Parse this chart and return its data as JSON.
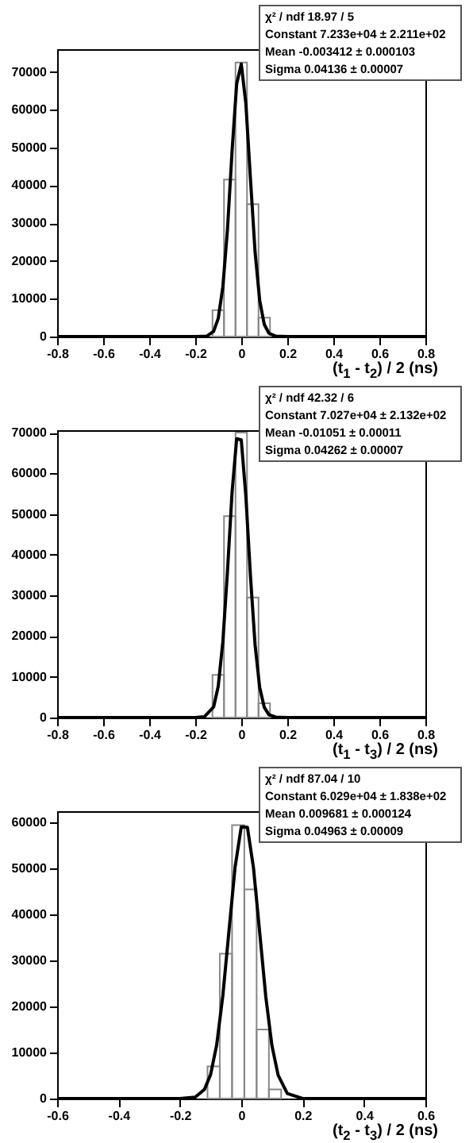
{
  "chart_data": [
    {
      "type": "histogram",
      "xlabel": "(t$_{1}$ - t$_{2}$) / 2 (ns)",
      "color": "#888888",
      "bins": [
        -0.125,
        -0.075,
        -0.025,
        0.025,
        0.075,
        0.125
      ],
      "values": [
        7000,
        41500,
        72500,
        35000,
        5000
      ],
      "series": [
        {
          "type": "line",
          "color": "#000000",
          "x": [
            -0.8,
            -0.2,
            -0.15,
            -0.12,
            -0.1,
            -0.08,
            -0.06,
            -0.04,
            -0.02,
            0,
            0.02,
            0.04,
            0.06,
            0.08,
            0.1,
            0.12,
            0.15,
            0.2,
            0.8
          ],
          "values": [
            0,
            0,
            100,
            1400,
            4800,
            13100,
            28200,
            49000,
            66800,
            72100,
            61600,
            41700,
            22400,
            9600,
            3200,
            900,
            100,
            0,
            0
          ]
        }
      ],
      "xlim": [
        -0.8,
        0.8
      ],
      "xticks": [
        -0.8,
        -0.6,
        -0.4,
        -0.2,
        0,
        0.2,
        0.4,
        0.6,
        0.8
      ],
      "ylim": [
        0,
        76000
      ],
      "yticks": [
        0,
        10000,
        20000,
        30000,
        40000,
        50000,
        60000,
        70000
      ],
      "annotations": [
        "χ² / ndf  18.97 / 5",
        "Constant  7.233e+04 ± 2.211e+02",
        "Mean  -0.003412 ± 0.000103",
        "Sigma  0.04136 ± 0.00007"
      ]
    },
    {
      "type": "histogram",
      "xlabel": "(t$_{1}$ - t$_{3}$) / 2 (ns)",
      "color": "#888888",
      "bins": [
        -0.125,
        -0.075,
        -0.025,
        0.025,
        0.075,
        0.125
      ],
      "values": [
        10500,
        49500,
        70000,
        29500,
        3500
      ],
      "series": [
        {
          "type": "line",
          "color": "#000000",
          "x": [
            -0.8,
            -0.2,
            -0.16,
            -0.12,
            -0.1,
            -0.08,
            -0.06,
            -0.04,
            -0.02,
            0,
            0.02,
            0.04,
            0.06,
            0.08,
            0.1,
            0.12,
            0.15,
            0.2,
            0.8
          ],
          "values": [
            0,
            0,
            200,
            2600,
            7700,
            18600,
            35800,
            55300,
            68500,
            68200,
            54400,
            34800,
            17900,
            7400,
            2500,
            700,
            100,
            0,
            0
          ]
        }
      ],
      "xlim": [
        -0.8,
        0.8
      ],
      "xticks": [
        -0.8,
        -0.6,
        -0.4,
        -0.2,
        0,
        0.2,
        0.4,
        0.6,
        0.8
      ],
      "ylim": [
        0,
        70600
      ],
      "yticks": [
        0,
        10000,
        20000,
        30000,
        40000,
        50000,
        60000,
        70000
      ],
      "annotations": [
        "χ² / ndf  42.32 / 6",
        "Constant  7.027e+04 ± 2.132e+02",
        "Mean  -0.01051 ± 0.00011",
        "Sigma  0.04262 ± 0.00007"
      ]
    },
    {
      "type": "histogram",
      "xlabel": "(t$_{2}$ - t$_{3}$) / 2 (ns)",
      "color": "#888888",
      "bins": [
        -0.11,
        -0.07,
        -0.03,
        0.01,
        0.05,
        0.09,
        0.13
      ],
      "values": [
        7000,
        31500,
        59500,
        45500,
        15000,
        2000
      ],
      "series": [
        {
          "type": "line",
          "color": "#000000",
          "x": [
            -0.6,
            -0.2,
            -0.15,
            -0.12,
            -0.1,
            -0.08,
            -0.06,
            -0.04,
            -0.02,
            0,
            0.02,
            0.04,
            0.06,
            0.08,
            0.1,
            0.12,
            0.15,
            0.2,
            0.25,
            0.6
          ],
          "values": [
            0,
            0,
            300,
            2000,
            5200,
            11700,
            22400,
            36500,
            50400,
            59100,
            59000,
            50100,
            36200,
            22100,
            11500,
            5100,
            1100,
            0,
            0,
            0
          ]
        }
      ],
      "xlim": [
        -0.6,
        0.6
      ],
      "xticks": [
        -0.6,
        -0.4,
        -0.2,
        0,
        0.2,
        0.4,
        0.6
      ],
      "ylim": [
        0,
        62500
      ],
      "yticks": [
        0,
        10000,
        20000,
        30000,
        40000,
        50000,
        60000
      ],
      "annotations": [
        "χ² / ndf  87.04 / 10",
        "Constant  6.029e+04 ± 1.838e+02",
        "Mean  0.009681 ± 0.000124",
        "Sigma  0.04963 ± 0.00009"
      ]
    }
  ]
}
